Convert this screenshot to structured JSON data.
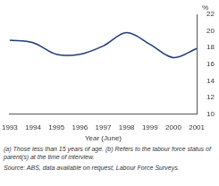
{
  "chart_data": {
    "type": "line",
    "y_label": "%",
    "x_label": "Year (June)",
    "categories": [
      "1993",
      "1994",
      "1995",
      "1996",
      "1997",
      "1998",
      "1999",
      "2000",
      "2001"
    ],
    "values": [
      18.9,
      18.6,
      17.2,
      17.2,
      18.2,
      19.8,
      18.4,
      16.8,
      17.9
    ],
    "color": "#1f3a7a",
    "ylim": [
      10,
      22
    ],
    "yticks": [
      10,
      12,
      14,
      16,
      18,
      20,
      22
    ],
    "grid": false,
    "annotations": [
      "(a) Those less than 15 years of age. (b) Refers to the labour force status of parent(s) at the time of interview.",
      "Source: ABS, data available on request, Labour Force Surveys."
    ]
  }
}
